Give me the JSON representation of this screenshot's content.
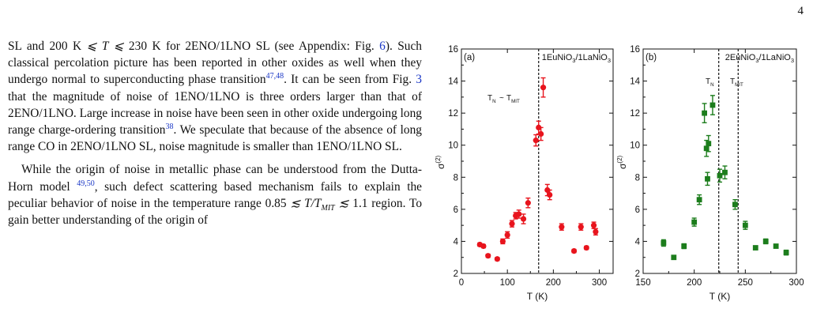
{
  "page_number": "4",
  "text": {
    "p1": [
      {
        "t": "SL and 200 K "
      },
      {
        "t": "⩽ ",
        "m": true
      },
      {
        "t": "T",
        "m": true
      },
      {
        "t": " ⩽ ",
        "m": true
      },
      {
        "t": "230 K for 2ENO/1LNO SL (see Appendix: Fig. "
      },
      {
        "t": "6",
        "fig": true
      },
      {
        "t": "). Such classical percolation picture has been reported in other oxides as well when they undergo normal to superconducting phase transition"
      },
      {
        "t": "47,48",
        "ref": true
      },
      {
        "t": ". It can be seen from Fig. "
      },
      {
        "t": "3",
        "fig": true
      },
      {
        "t": " that the magnitude of noise of 1ENO/1LNO is three orders larger than that of 2ENO/1LNO. Large increase in noise have been seen in other oxide undergoing long range charge-ordering transition"
      },
      {
        "t": "38",
        "ref": true
      },
      {
        "t": ". We speculate that because of the absence of long range CO in 2ENO/1LNO SL, noise magnitude is smaller than 1ENO/1LNO SL."
      }
    ],
    "p2": [
      {
        "t": "While the origin of noise in metallic phase can be understood from the Dutta-Horn model "
      },
      {
        "t": "49,50",
        "ref": true
      },
      {
        "t": ", such defect scattering based mechanism fails to explain the peculiar behavior of noise in the temperature range 0.85 "
      },
      {
        "t": "≲ ",
        "m": true
      },
      {
        "t": "T/T",
        "m": true
      },
      {
        "t": "MIT",
        "sub": true
      },
      {
        "t": " ≲ ",
        "m": true
      },
      {
        "t": "1.1 region. To gain better understanding of the origin of"
      }
    ]
  },
  "chart_data": [
    {
      "type": "scatter",
      "panel_label": "(a)",
      "title": "1EuNiO3/1LaNiO3",
      "ylabel": "σ(2)",
      "xlabel": "T (K)",
      "xlim": [
        0,
        330
      ],
      "ylim": [
        2,
        16
      ],
      "xticks": [
        0,
        100,
        200,
        300
      ],
      "yticks": [
        2,
        4,
        6,
        8,
        10,
        12,
        14,
        16
      ],
      "color": "#e8141d",
      "marker": "circle",
      "annotation": "TN ~ TMIT",
      "vlines": [
        168
      ],
      "points": [
        {
          "x": 40,
          "y": 3.8,
          "e": 0.1
        },
        {
          "x": 48,
          "y": 3.7,
          "e": 0.1
        },
        {
          "x": 58,
          "y": 3.1,
          "e": 0.1
        },
        {
          "x": 78,
          "y": 2.9,
          "e": 0.1
        },
        {
          "x": 90,
          "y": 4.0,
          "e": 0.15
        },
        {
          "x": 100,
          "y": 4.4,
          "e": 0.2
        },
        {
          "x": 110,
          "y": 5.1,
          "e": 0.2
        },
        {
          "x": 118,
          "y": 5.6,
          "e": 0.2
        },
        {
          "x": 125,
          "y": 5.7,
          "e": 0.25
        },
        {
          "x": 135,
          "y": 5.4,
          "e": 0.3
        },
        {
          "x": 145,
          "y": 6.4,
          "e": 0.3
        },
        {
          "x": 162,
          "y": 10.3,
          "e": 0.35
        },
        {
          "x": 168,
          "y": 11.1,
          "e": 0.4
        },
        {
          "x": 173,
          "y": 10.7,
          "e": 0.4
        },
        {
          "x": 178,
          "y": 13.6,
          "e": 0.6
        },
        {
          "x": 187,
          "y": 7.2,
          "e": 0.35
        },
        {
          "x": 192,
          "y": 6.9,
          "e": 0.3
        },
        {
          "x": 218,
          "y": 4.9,
          "e": 0.2
        },
        {
          "x": 245,
          "y": 3.4,
          "e": 0.1
        },
        {
          "x": 260,
          "y": 4.9,
          "e": 0.2
        },
        {
          "x": 272,
          "y": 3.6,
          "e": 0.1
        },
        {
          "x": 288,
          "y": 5.0,
          "e": 0.2
        },
        {
          "x": 292,
          "y": 4.6,
          "e": 0.2
        }
      ]
    },
    {
      "type": "scatter",
      "panel_label": "(b)",
      "title": "2EuNiO3/1LaNiO3",
      "ylabel": "σ(2)",
      "xlabel": "T (K)",
      "xlim": [
        150,
        300
      ],
      "ylim": [
        2,
        16
      ],
      "xticks": [
        150,
        200,
        250,
        300
      ],
      "yticks": [
        2,
        4,
        6,
        8,
        10,
        12,
        14,
        16
      ],
      "color": "#1c7d1c",
      "marker": "square",
      "annotations": [
        "TN",
        "TMIT"
      ],
      "vlines": [
        224,
        243
      ],
      "points": [
        {
          "x": 170,
          "y": 3.9,
          "e": 0.2
        },
        {
          "x": 180,
          "y": 3.0,
          "e": 0.1
        },
        {
          "x": 190,
          "y": 3.7,
          "e": 0.15
        },
        {
          "x": 200,
          "y": 5.2,
          "e": 0.25
        },
        {
          "x": 205,
          "y": 6.6,
          "e": 0.3
        },
        {
          "x": 210,
          "y": 12.0,
          "e": 0.6
        },
        {
          "x": 212,
          "y": 9.8,
          "e": 0.5
        },
        {
          "x": 213,
          "y": 7.9,
          "e": 0.4
        },
        {
          "x": 214,
          "y": 10.1,
          "e": 0.5
        },
        {
          "x": 218,
          "y": 12.5,
          "e": 0.6
        },
        {
          "x": 225,
          "y": 8.1,
          "e": 0.4
        },
        {
          "x": 230,
          "y": 8.3,
          "e": 0.4
        },
        {
          "x": 240,
          "y": 6.3,
          "e": 0.3
        },
        {
          "x": 250,
          "y": 5.0,
          "e": 0.25
        },
        {
          "x": 260,
          "y": 3.6,
          "e": 0.1
        },
        {
          "x": 270,
          "y": 4.0,
          "e": 0.15
        },
        {
          "x": 280,
          "y": 3.7,
          "e": 0.1
        },
        {
          "x": 290,
          "y": 3.3,
          "e": 0.15
        }
      ]
    }
  ]
}
